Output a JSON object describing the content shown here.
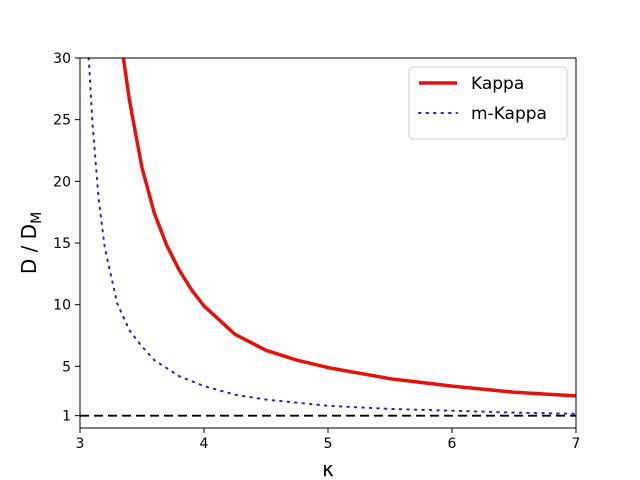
{
  "chart_data": {
    "type": "line",
    "title": "",
    "xlabel": "κ",
    "ylabel": {
      "main": "D / D",
      "subscript": "M"
    },
    "xlim": [
      3,
      7
    ],
    "ylim": [
      0,
      30
    ],
    "xticks": [
      3,
      4,
      5,
      6,
      7
    ],
    "yticks": [
      1,
      5,
      10,
      15,
      20,
      25,
      30
    ],
    "grid": false,
    "legend_position": "top-right",
    "series": [
      {
        "name": "Kappa",
        "color": "#e3120b",
        "style": "solid",
        "x": [
          3.35,
          3.4,
          3.5,
          3.6,
          3.7,
          3.8,
          3.9,
          4.0,
          4.25,
          4.5,
          4.75,
          5.0,
          5.5,
          6.0,
          6.5,
          7.0
        ],
        "y": [
          30,
          26.5,
          21.1,
          17.4,
          14.8,
          12.8,
          11.2,
          9.9,
          7.6,
          6.3,
          5.5,
          4.9,
          4.0,
          3.4,
          2.9,
          2.6
        ]
      },
      {
        "name": "m-Kappa",
        "color": "#1f1fd0",
        "style": "dotted",
        "x": [
          3.07,
          3.1,
          3.15,
          3.2,
          3.3,
          3.4,
          3.5,
          3.6,
          3.8,
          4.0,
          4.25,
          4.5,
          5.0,
          5.5,
          6.0,
          6.5,
          7.0
        ],
        "y": [
          30,
          24.8,
          18.6,
          14.6,
          10.1,
          7.9,
          6.6,
          5.5,
          4.2,
          3.4,
          2.7,
          2.3,
          1.8,
          1.55,
          1.4,
          1.25,
          1.15
        ]
      },
      {
        "name": "",
        "color": "#000000",
        "style": "dashed",
        "x": [
          3,
          7
        ],
        "y": [
          1,
          1
        ]
      }
    ]
  }
}
